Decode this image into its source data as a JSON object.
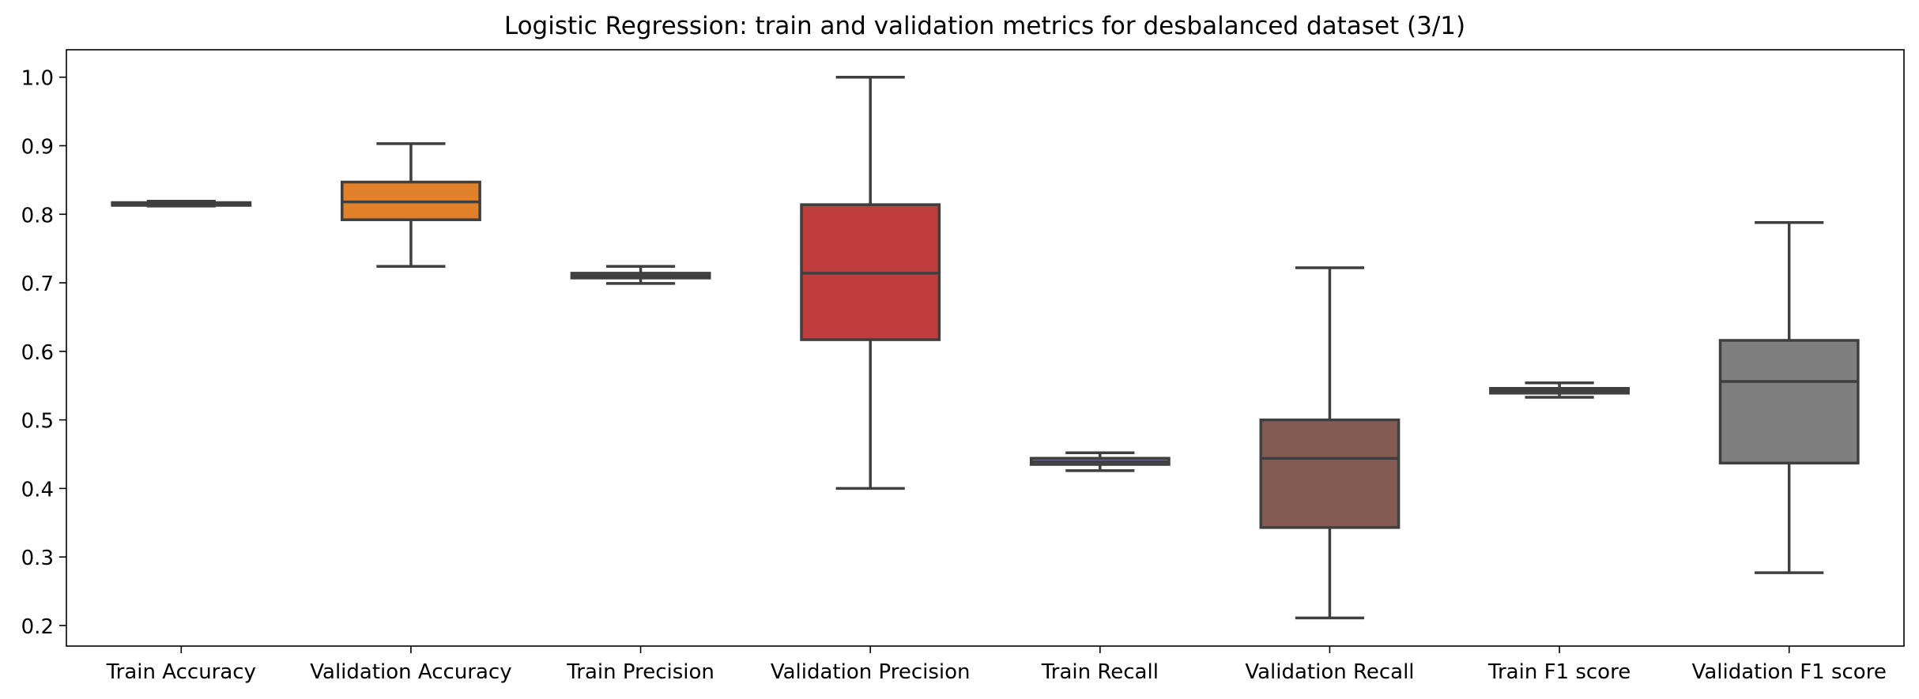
{
  "chart_data": {
    "type": "box",
    "title": "Logistic Regression: train and validation metrics for desbalanced dataset (3/1)",
    "xlabel": "",
    "ylabel": "",
    "ylim": [
      0.17,
      1.04
    ],
    "yticks": [
      "0.2",
      "0.3",
      "0.4",
      "0.5",
      "0.6",
      "0.7",
      "0.8",
      "0.9",
      "1.0"
    ],
    "grid": false,
    "categories": [
      "Train Accuracy",
      "Validation Accuracy",
      "Train Precision",
      "Validation Precision",
      "Train Recall",
      "Validation Recall",
      "Train F1 score",
      "Validation F1 score"
    ],
    "boxes": [
      {
        "min": 0.812,
        "q1": 0.813,
        "median": 0.815,
        "q3": 0.817,
        "max": 0.819,
        "color": "#3a75af"
      },
      {
        "min": 0.724,
        "q1": 0.792,
        "median": 0.818,
        "q3": 0.847,
        "max": 0.903,
        "color": "#e1812b"
      },
      {
        "min": 0.699,
        "q1": 0.707,
        "median": 0.71,
        "q3": 0.714,
        "max": 0.724,
        "color": "#3a923a"
      },
      {
        "min": 0.4,
        "q1": 0.617,
        "median": 0.714,
        "q3": 0.814,
        "max": 1.0,
        "color": "#c03d3e"
      },
      {
        "min": 0.426,
        "q1": 0.435,
        "median": 0.439,
        "q3": 0.444,
        "max": 0.452,
        "color": "#9372b2"
      },
      {
        "min": 0.211,
        "q1": 0.343,
        "median": 0.444,
        "q3": 0.5,
        "max": 0.722,
        "color": "#845b53"
      },
      {
        "min": 0.533,
        "q1": 0.539,
        "median": 0.543,
        "q3": 0.546,
        "max": 0.554,
        "color": "#d684bd"
      },
      {
        "min": 0.277,
        "q1": 0.437,
        "median": 0.556,
        "q3": 0.616,
        "max": 0.788,
        "color": "#7f7f7f"
      }
    ]
  }
}
